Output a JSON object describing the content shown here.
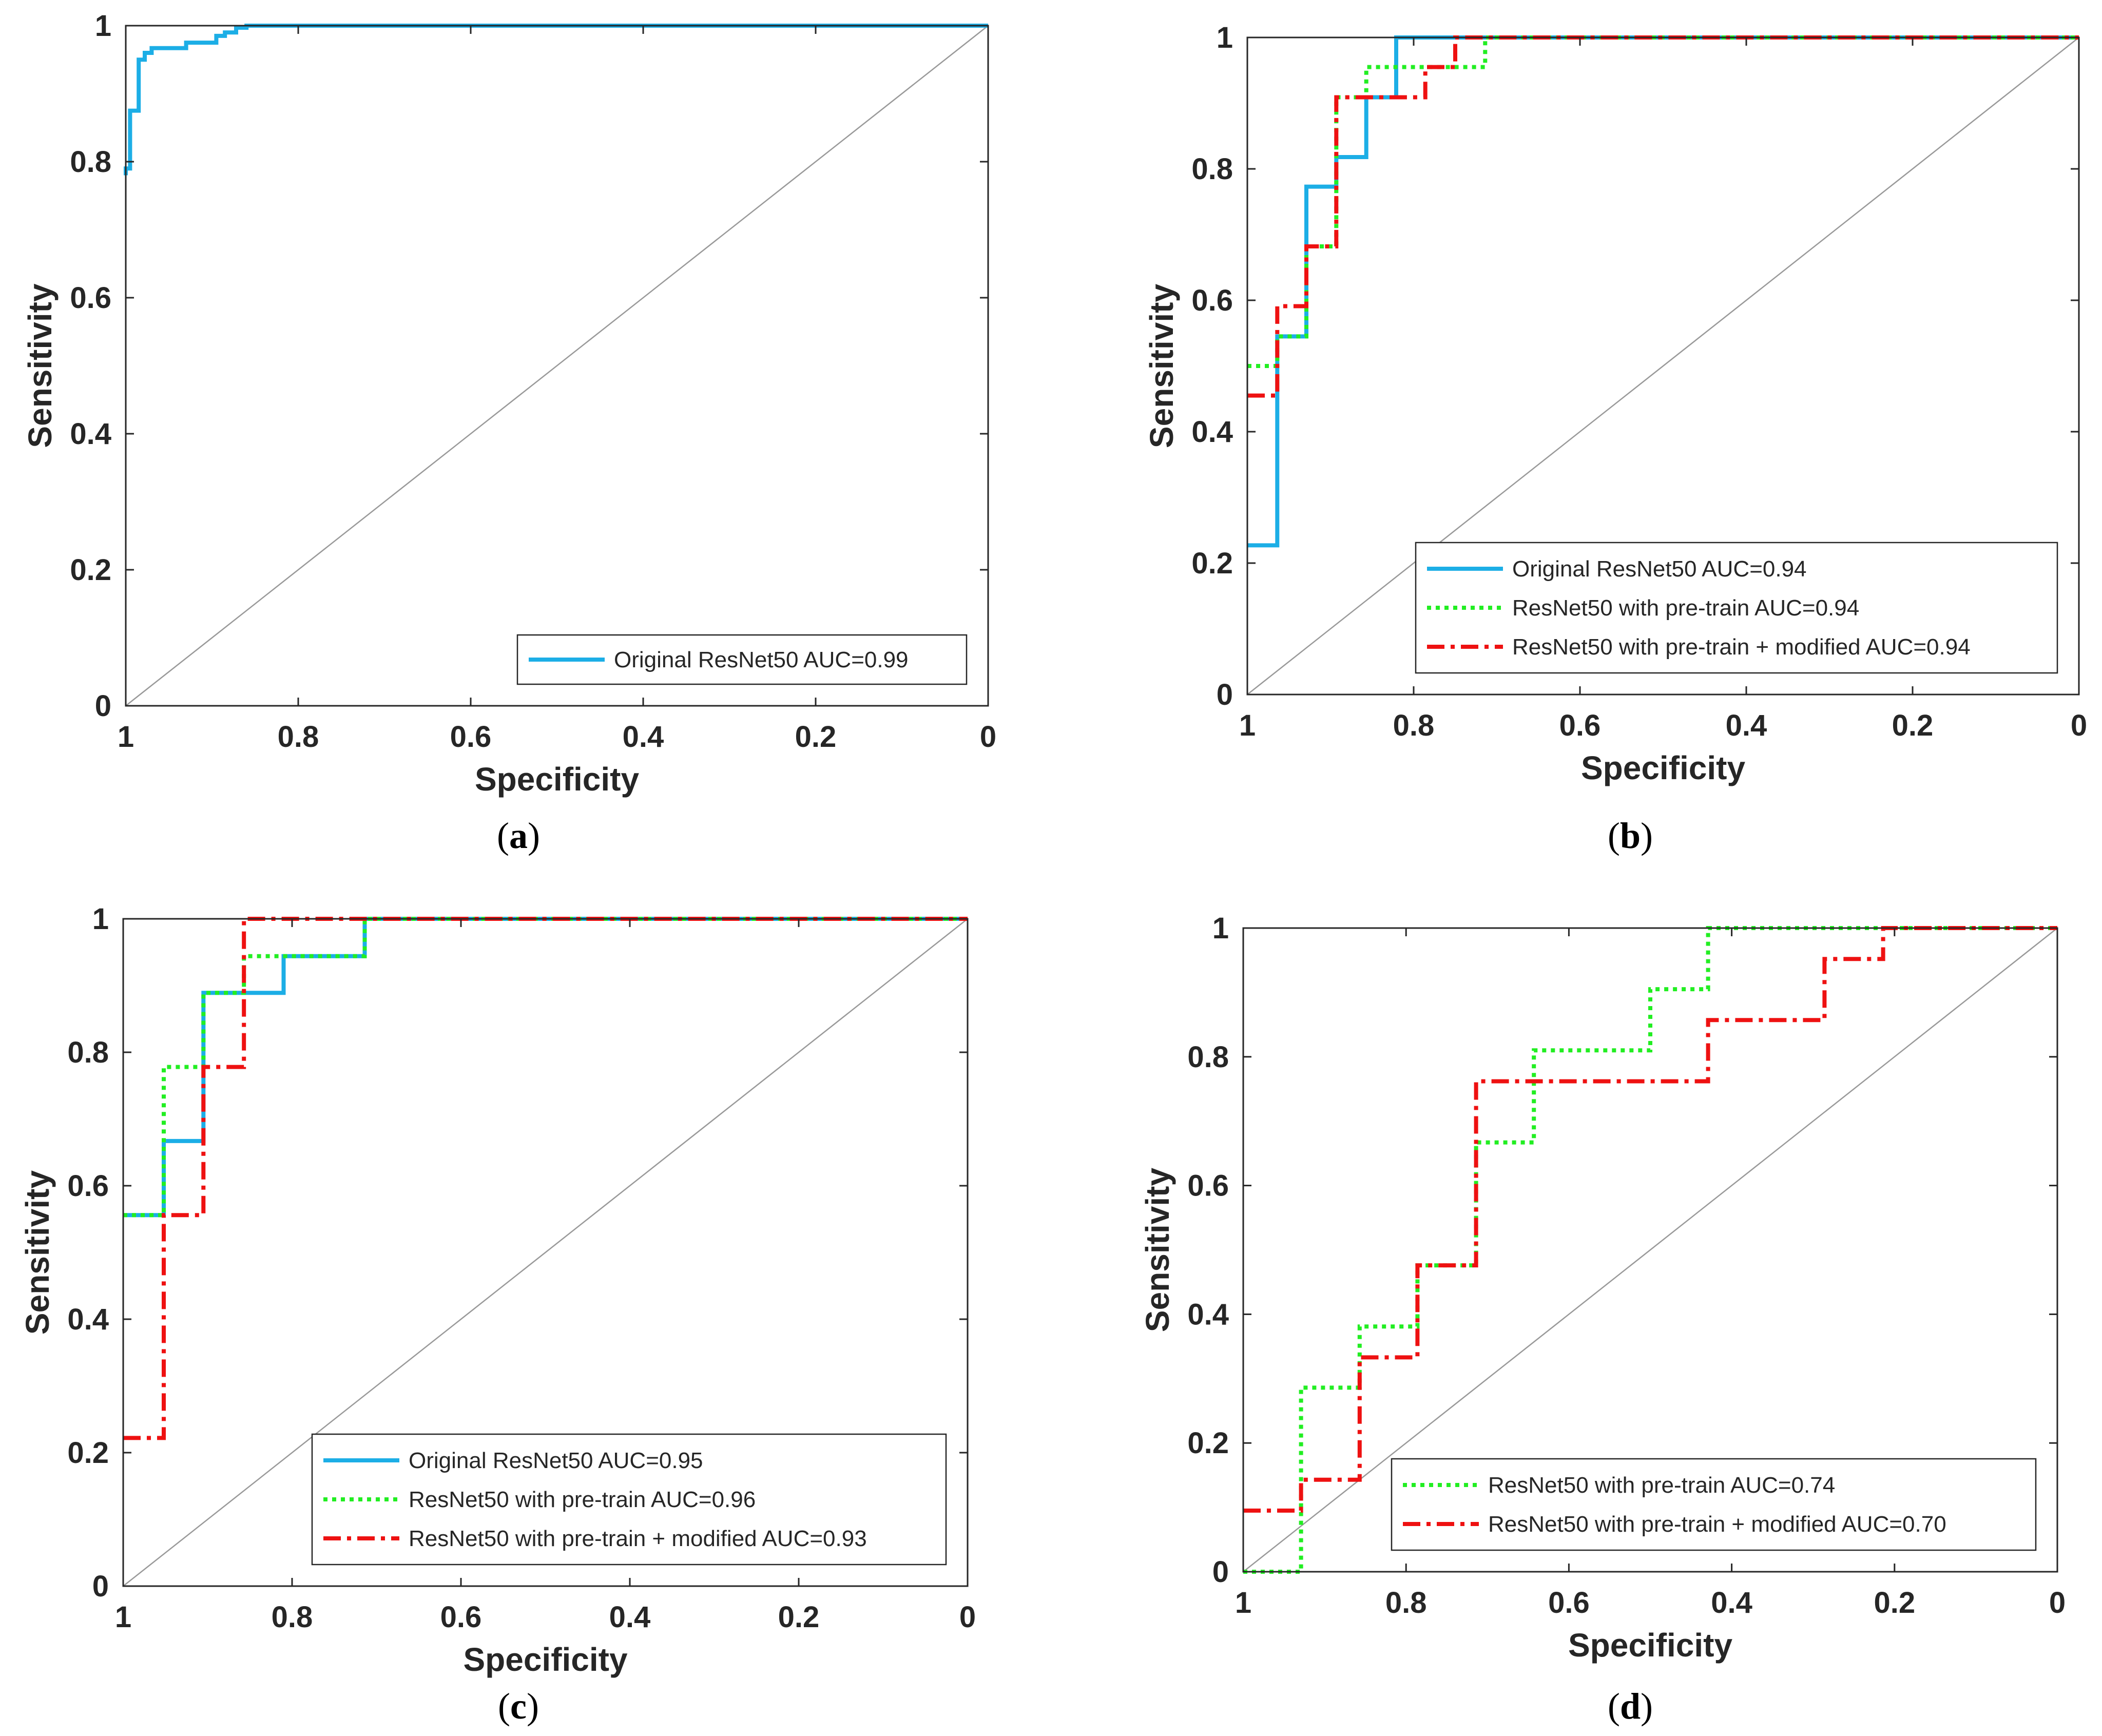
{
  "figure": {
    "colors": {
      "blue": "#1CAEE6",
      "green": "#22EE22",
      "red": "#EE1111",
      "axis": "#262626",
      "diagonal": "#999999",
      "legend_border": "#262626"
    }
  },
  "chart_data": [
    {
      "type": "line",
      "panel": "a",
      "caption_open": "(",
      "caption_letter": "a",
      "caption_close": ")",
      "xlabel": "Specificity",
      "ylabel": "Sensitivity",
      "xlim": [
        1,
        0
      ],
      "ylim": [
        0,
        1
      ],
      "x_reversed": true,
      "xticks": [
        1,
        0.8,
        0.6,
        0.4,
        0.2,
        0
      ],
      "xtick_labels": [
        "1",
        "0.8",
        "0.6",
        "0.4",
        "0.2",
        "0"
      ],
      "yticks": [
        0,
        0.2,
        0.4,
        0.6,
        0.8,
        1
      ],
      "ytick_labels": [
        "0",
        "0.2",
        "0.4",
        "0.6",
        "0.8",
        "1"
      ],
      "legend_position": "bottom-right",
      "reference_line": {
        "x": [
          1,
          0
        ],
        "y": [
          0,
          1
        ],
        "color": "#999999"
      },
      "series": [
        {
          "name": "Original ResNet50 AUC=0.99",
          "color": "#1CAEE6",
          "style": "solid",
          "x": [
            1,
            1,
            0.995,
            0.995,
            0.99,
            0.99,
            0.985,
            0.985,
            0.978,
            0.978,
            0.97,
            0.97,
            0.93,
            0.93,
            0.895,
            0.895,
            0.885,
            0.885,
            0.872,
            0.872,
            0.86,
            0.86,
            0
          ],
          "y": [
            0.78,
            0.79,
            0.79,
            0.875,
            0.875,
            0.875,
            0.875,
            0.95,
            0.95,
            0.96,
            0.96,
            0.967,
            0.967,
            0.975,
            0.975,
            0.985,
            0.985,
            0.99,
            0.99,
            0.997,
            0.997,
            1.0,
            1.0
          ]
        }
      ]
    },
    {
      "type": "line",
      "panel": "b",
      "caption_open": "(",
      "caption_letter": "b",
      "caption_close": ")",
      "xlabel": "Specificity",
      "ylabel": "Sensitivity",
      "xlim": [
        1,
        0
      ],
      "ylim": [
        0,
        1
      ],
      "x_reversed": true,
      "xticks": [
        1,
        0.8,
        0.6,
        0.4,
        0.2,
        0
      ],
      "xtick_labels": [
        "1",
        "0.8",
        "0.6",
        "0.4",
        "0.2",
        "0"
      ],
      "yticks": [
        0,
        0.2,
        0.4,
        0.6,
        0.8,
        1
      ],
      "ytick_labels": [
        "0",
        "0.2",
        "0.4",
        "0.6",
        "0.8",
        "1"
      ],
      "legend_position": "bottom-right",
      "reference_line": {
        "x": [
          1,
          0
        ],
        "y": [
          0,
          1
        ],
        "color": "#999999"
      },
      "series": [
        {
          "name": "Original ResNet50 AUC=0.94",
          "color": "#1CAEE6",
          "style": "solid",
          "x": [
            1,
            0.964,
            0.964,
            0.929,
            0.929,
            0.893,
            0.893,
            0.857,
            0.857,
            0.821,
            0.821,
            0
          ],
          "y": [
            0.227,
            0.227,
            0.545,
            0.545,
            0.773,
            0.773,
            0.818,
            0.818,
            0.909,
            0.909,
            1.0,
            1.0
          ]
        },
        {
          "name": "ResNet50 with pre-train AUC=0.94",
          "color": "#22EE22",
          "style": "dotted",
          "x": [
            1,
            0.964,
            0.964,
            0.929,
            0.929,
            0.893,
            0.893,
            0.857,
            0.857,
            0.75,
            0.75,
            0.714,
            0.714,
            0
          ],
          "y": [
            0.5,
            0.5,
            0.545,
            0.545,
            0.682,
            0.682,
            0.909,
            0.909,
            0.955,
            0.955,
            0.955,
            0.955,
            1.0,
            1.0
          ]
        },
        {
          "name": "ResNet50 with pre-train + modified AUC=0.94",
          "color": "#EE1111",
          "style": "dashdot",
          "x": [
            1,
            0.964,
            0.964,
            0.929,
            0.929,
            0.893,
            0.893,
            0.786,
            0.786,
            0.75,
            0.75,
            0
          ],
          "y": [
            0.455,
            0.455,
            0.591,
            0.591,
            0.682,
            0.682,
            0.909,
            0.909,
            0.955,
            0.955,
            1.0,
            1.0
          ]
        }
      ]
    },
    {
      "type": "line",
      "panel": "c",
      "caption_open": "(",
      "caption_letter": "c",
      "caption_close": ")",
      "xlabel": "Specificity",
      "ylabel": "Sensitivity",
      "xlim": [
        1,
        0
      ],
      "ylim": [
        0,
        1
      ],
      "x_reversed": true,
      "xticks": [
        1,
        0.8,
        0.6,
        0.4,
        0.2,
        0
      ],
      "xtick_labels": [
        "1",
        "0.8",
        "0.6",
        "0.4",
        "0.2",
        "0"
      ],
      "yticks": [
        0,
        0.2,
        0.4,
        0.6,
        0.8,
        1
      ],
      "ytick_labels": [
        "0",
        "0.2",
        "0.4",
        "0.6",
        "0.8",
        "1"
      ],
      "legend_position": "bottom-right",
      "reference_line": {
        "x": [
          1,
          0
        ],
        "y": [
          0,
          1
        ],
        "color": "#999999"
      },
      "series": [
        {
          "name": "Original ResNet50 AUC=0.95",
          "color": "#1CAEE6",
          "style": "solid",
          "x": [
            1,
            0.952,
            0.952,
            0.905,
            0.905,
            0.81,
            0.81,
            0.714,
            0.714,
            0
          ],
          "y": [
            0.556,
            0.556,
            0.667,
            0.667,
            0.889,
            0.889,
            0.944,
            0.944,
            1.0,
            1.0
          ]
        },
        {
          "name": "ResNet50 with pre-train AUC=0.96",
          "color": "#22EE22",
          "style": "dotted",
          "x": [
            1,
            0.952,
            0.952,
            0.905,
            0.905,
            0.857,
            0.857,
            0.714,
            0.714,
            0
          ],
          "y": [
            0.556,
            0.556,
            0.778,
            0.778,
            0.889,
            0.889,
            0.944,
            0.944,
            1.0,
            1.0
          ]
        },
        {
          "name": "ResNet50 with pre-train + modified AUC=0.93",
          "color": "#EE1111",
          "style": "dashdot",
          "x": [
            1,
            0.952,
            0.952,
            0.905,
            0.905,
            0.857,
            0.857,
            0
          ],
          "y": [
            0.222,
            0.222,
            0.556,
            0.556,
            0.778,
            0.778,
            1.0,
            1.0
          ]
        }
      ]
    },
    {
      "type": "line",
      "panel": "d",
      "caption_open": "(",
      "caption_letter": "d",
      "caption_close": ")",
      "xlabel": "Specificity",
      "ylabel": "Sensitivity",
      "xlim": [
        1,
        0
      ],
      "ylim": [
        0,
        1
      ],
      "x_reversed": true,
      "xticks": [
        1,
        0.8,
        0.6,
        0.4,
        0.2,
        0
      ],
      "xtick_labels": [
        "1",
        "0.8",
        "0.6",
        "0.4",
        "0.2",
        "0"
      ],
      "yticks": [
        0,
        0.2,
        0.4,
        0.6,
        0.8,
        1
      ],
      "ytick_labels": [
        "0",
        "0.2",
        "0.4",
        "0.6",
        "0.8",
        "1"
      ],
      "legend_position": "bottom-right",
      "reference_line": {
        "x": [
          1,
          0
        ],
        "y": [
          0,
          1
        ],
        "color": "#999999"
      },
      "series": [
        {
          "name": "ResNet50 with pre-train AUC=0.74",
          "color": "#22EE22",
          "style": "dotted",
          "x": [
            1,
            0.929,
            0.929,
            0.857,
            0.857,
            0.786,
            0.786,
            0.714,
            0.714,
            0.643,
            0.643,
            0.5,
            0.5,
            0.429,
            0.429,
            0
          ],
          "y": [
            0,
            0,
            0.286,
            0.286,
            0.381,
            0.381,
            0.476,
            0.476,
            0.667,
            0.667,
            0.81,
            0.81,
            0.905,
            0.905,
            1.0,
            1.0
          ]
        },
        {
          "name": "ResNet50 with pre-train + modified AUC=0.70",
          "color": "#EE1111",
          "style": "dashdot",
          "x": [
            1,
            0.929,
            0.929,
            0.857,
            0.857,
            0.786,
            0.786,
            0.714,
            0.714,
            0.429,
            0.429,
            0.286,
            0.286,
            0.214,
            0.214,
            0
          ],
          "y": [
            0.095,
            0.095,
            0.143,
            0.143,
            0.333,
            0.333,
            0.476,
            0.476,
            0.762,
            0.762,
            0.857,
            0.857,
            0.952,
            0.952,
            1.0,
            1.0
          ]
        }
      ]
    }
  ]
}
